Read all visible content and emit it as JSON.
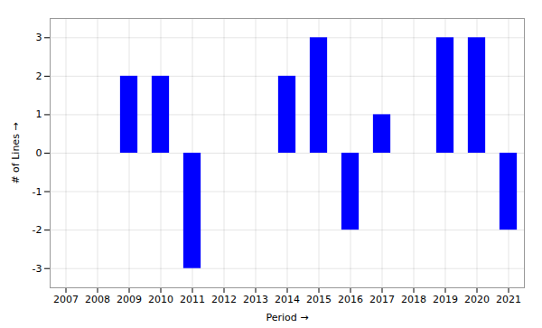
{
  "chart_data": {
    "type": "bar",
    "x": [
      2007,
      2008,
      2009,
      2010,
      2011,
      2012,
      2013,
      2014,
      2015,
      2016,
      2017,
      2018,
      2019,
      2020,
      2021
    ],
    "values": [
      0,
      0,
      2,
      2,
      -3,
      0,
      0,
      2,
      3,
      -2,
      1,
      0,
      3,
      3,
      -2
    ],
    "color": "#0000FF",
    "xlabel": "Period",
    "ylabel": "# of Lines",
    "xlim": [
      2006.5,
      2021.5
    ],
    "xticks": [
      2007,
      2008,
      2009,
      2010,
      2011,
      2012,
      2013,
      2014,
      2015,
      2016,
      2017,
      2018,
      2019,
      2020,
      2021
    ],
    "ylim": [
      -3.5,
      3.5
    ],
    "yticks": [
      -3,
      -2,
      -1,
      0,
      1,
      2,
      3
    ],
    "grid": true
  }
}
